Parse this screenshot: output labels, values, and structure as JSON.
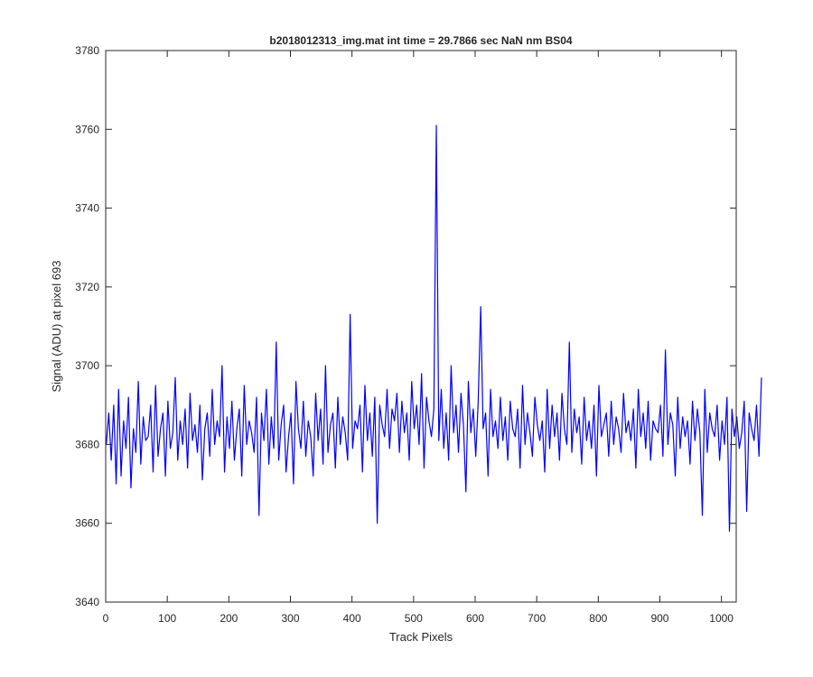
{
  "chart_data": {
    "type": "line",
    "title": "b2018012313_img.mat int time = 29.7866 sec  NaN nm BS04",
    "xlabel": "Track Pixels",
    "ylabel": "Signal (ADU) at pixel 693",
    "xlim": [
      0,
      1024
    ],
    "ylim": [
      3640,
      3780
    ],
    "xticks": [
      0,
      100,
      200,
      300,
      400,
      500,
      600,
      700,
      800,
      900,
      1000
    ],
    "yticks": [
      3640,
      3660,
      3680,
      3700,
      3720,
      3740,
      3760,
      3780
    ],
    "grid": false,
    "line_color": "#0000ff",
    "series": [
      {
        "x_start": 1,
        "x_step": 4,
        "values": [
          3680,
          3688,
          3676,
          3690,
          3670,
          3694,
          3672,
          3686,
          3679,
          3692,
          3669,
          3684,
          3678,
          3696,
          3675,
          3687,
          3681,
          3682,
          3690,
          3673,
          3695,
          3677,
          3684,
          3688,
          3672,
          3691,
          3679,
          3683,
          3697,
          3676,
          3686,
          3680,
          3689,
          3674,
          3693,
          3681,
          3685,
          3678,
          3690,
          3671,
          3684,
          3688,
          3677,
          3694,
          3680,
          3686,
          3682,
          3700,
          3673,
          3687,
          3679,
          3691,
          3676,
          3684,
          3689,
          3672,
          3695,
          3680,
          3686,
          3683,
          3678,
          3692,
          3662,
          3688,
          3681,
          3694,
          3675,
          3687,
          3679,
          3706,
          3676,
          3685,
          3690,
          3673,
          3682,
          3688,
          3670,
          3696,
          3684,
          3679,
          3691,
          3677,
          3686,
          3682,
          3672,
          3693,
          3681,
          3689,
          3675,
          3700,
          3678,
          3685,
          3688,
          3674,
          3692,
          3680,
          3687,
          3683,
          3676,
          3713,
          3679,
          3686,
          3684,
          3690,
          3673,
          3695,
          3681,
          3688,
          3677,
          3692,
          3660,
          3690,
          3685,
          3682,
          3694,
          3679,
          3689,
          3686,
          3693,
          3678,
          3691,
          3683,
          3688,
          3676,
          3696,
          3684,
          3690,
          3680,
          3698,
          3674,
          3692,
          3686,
          3682,
          3689,
          3761,
          3681,
          3694,
          3679,
          3688,
          3676,
          3700,
          3683,
          3690,
          3678,
          3693,
          3685,
          3668,
          3696,
          3683,
          3689,
          3677,
          3691,
          3715,
          3684,
          3688,
          3672,
          3694,
          3682,
          3686,
          3679,
          3692,
          3681,
          3687,
          3676,
          3691,
          3684,
          3682,
          3689,
          3674,
          3695,
          3680,
          3688,
          3683,
          3677,
          3692,
          3685,
          3681,
          3686,
          3673,
          3694,
          3679,
          3690,
          3682,
          3688,
          3676,
          3693,
          3684,
          3680,
          3706,
          3678,
          3689,
          3683,
          3687,
          3675,
          3692,
          3681,
          3686,
          3679,
          3690,
          3672,
          3695,
          3682,
          3685,
          3688,
          3677,
          3691,
          3680,
          3687,
          3684,
          3678,
          3693,
          3683,
          3686,
          3681,
          3689,
          3674,
          3694,
          3682,
          3688,
          3679,
          3691,
          3676,
          3686,
          3684,
          3683,
          3690,
          3677,
          3704,
          3680,
          3688,
          3685,
          3672,
          3692,
          3679,
          3687,
          3682,
          3686,
          3675,
          3691,
          3681,
          3689,
          3683,
          3662,
          3694,
          3678,
          3688,
          3684,
          3682,
          3690,
          3676,
          3686,
          3680,
          3692,
          3658,
          3689,
          3682,
          3687,
          3679,
          3683,
          3691,
          3663,
          3688,
          3684,
          3681,
          3690,
          3677,
          3697
        ]
      }
    ]
  }
}
